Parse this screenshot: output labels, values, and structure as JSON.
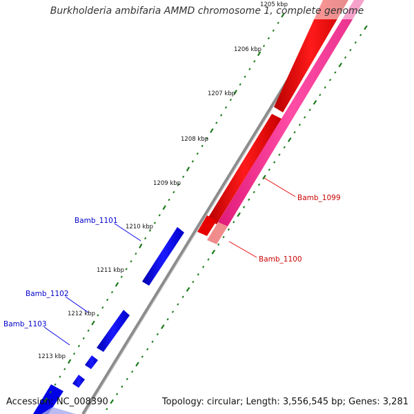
{
  "title": "Burkholderia ambifaria AMMD chromosome 1, complete genome",
  "accession": "Accession: NC_008390",
  "topology": "Topology: circular; Length: 3,556,545 bp; Genes: 3,281",
  "ticks": [
    {
      "kbp": 1205,
      "label": "1205 kbp"
    },
    {
      "kbp": 1206,
      "label": "1206 kbp"
    },
    {
      "kbp": 1207,
      "label": "1207 kbp"
    },
    {
      "kbp": 1208,
      "label": "1208 kbp"
    },
    {
      "kbp": 1209,
      "label": "1209 kbp"
    },
    {
      "kbp": 1210,
      "label": "1210 kbp"
    },
    {
      "kbp": 1211,
      "label": "1211 kbp"
    },
    {
      "kbp": 1212,
      "label": "1212 kbp"
    },
    {
      "kbp": 1213,
      "label": "1213 kbp"
    }
  ],
  "genes": [
    {
      "label": "Bamb_1099",
      "strand": "reverse",
      "color": "#e60000"
    },
    {
      "label": "Bamb_1100",
      "strand": "reverse",
      "color": "#ff3399"
    },
    {
      "label": "Bamb_1101",
      "strand": "forward",
      "color": "#0000e6"
    },
    {
      "label": "Bamb_1102",
      "strand": "forward",
      "color": "#0000e6"
    },
    {
      "label": "Bamb_1103",
      "strand": "forward",
      "color": "#0000e6"
    }
  ],
  "colors": {
    "backbone": "#8c8c8c",
    "forward": "#0000e6",
    "reverse": "#e60000",
    "rna": "#ff3399",
    "ticks": "#1a7a1a"
  }
}
